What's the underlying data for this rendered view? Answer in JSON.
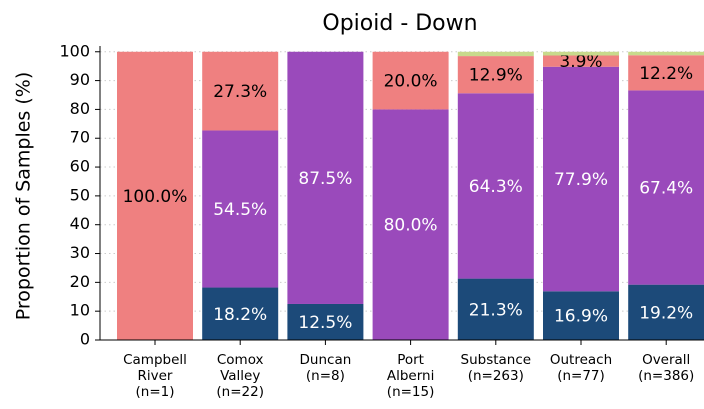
{
  "chart_data": {
    "type": "stacked_bar",
    "title": "Opioid - Down",
    "y_label": "Proportion of Samples (%)",
    "categories": [
      "Campbell\nRiver\n(n=1)",
      "Comox\nValley\n(n=22)",
      "Duncan\n(n=8)",
      "Port\nAlberni\n(n=15)",
      "Substance\n(n=263)",
      "Outreach\n(n=77)",
      "Overall\n(n=386)"
    ],
    "series": [
      {
        "color": "#1c4a79",
        "values": [
          0,
          18.2,
          12.5,
          0,
          21.3,
          16.9,
          19.2
        ],
        "value_labels": [
          null,
          "18.2%",
          "12.5%",
          null,
          "21.3%",
          "16.9%",
          "19.2%"
        ]
      },
      {
        "color": "#9a4abb",
        "values": [
          0,
          54.5,
          87.5,
          80.0,
          64.3,
          77.9,
          67.4
        ],
        "value_labels": [
          null,
          "54.5%",
          "87.5%",
          "80.0%",
          "64.3%",
          "77.9%",
          "67.4%"
        ]
      },
      {
        "color": "#ef8080",
        "values": [
          100,
          27.3,
          0,
          20.0,
          12.9,
          3.9,
          12.2
        ],
        "value_labels": [
          "100.0%",
          "27.3%",
          null,
          "20.0%",
          "12.9%",
          "3.9%",
          "12.2%"
        ]
      },
      {
        "color": "#c8da8c",
        "values": [
          0,
          0,
          0,
          0,
          1.5,
          1.3,
          1.2
        ]
      }
    ],
    "ylim": [
      0,
      102
    ],
    "yticks": [
      0,
      10,
      20,
      30,
      40,
      50,
      60,
      70,
      80,
      90,
      100
    ],
    "grid": true
  }
}
